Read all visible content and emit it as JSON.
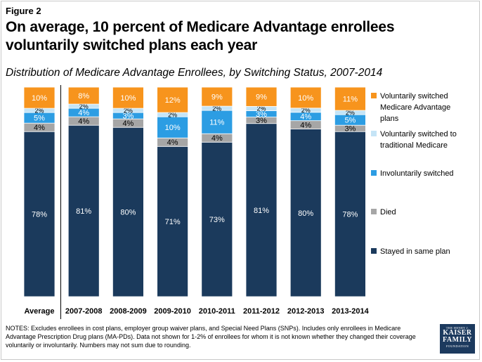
{
  "figure_label": "Figure 2",
  "title": "On average, 10 percent of Medicare Advantage enrollees voluntarily switched plans each year",
  "subtitle": "Distribution of Medicare Advantage Enrollees, by Switching Status, 2007-2014",
  "notes": "NOTES: Excludes enrollees in cost plans, employer group waiver plans, and Special Need Plans (SNPs).  Includes only enrollees in Medicare Advantage Prescription Drug plans (MA-PDs).  Data not shown for 1-2% of enrollees for whom it is not known whether they changed their coverage voluntarily or involuntarily.  Numbers may not sum due to rounding.",
  "logo": {
    "line1": "THE HENRY J.",
    "line2": "KAISER",
    "line3": "FAMILY",
    "line4": "FOUNDATION"
  },
  "chart_data": {
    "type": "bar",
    "stacked": true,
    "categories": [
      "Average",
      "2007-2008",
      "2008-2009",
      "2009-2010",
      "2010-2011",
      "2011-2012",
      "2012-2013",
      "2013-2014"
    ],
    "series": [
      {
        "name": "Stayed in same plan",
        "values": [
          78,
          81,
          80,
          71,
          73,
          81,
          80,
          78
        ],
        "labels": [
          "78%",
          "81%",
          "80%",
          "71%",
          "73%",
          "81%",
          "80%",
          "78%"
        ],
        "color": "#1b3a5c",
        "text_color": "#ffffff"
      },
      {
        "name": "Died",
        "values": [
          4,
          4,
          4,
          4,
          4,
          3,
          4,
          3
        ],
        "labels": [
          "4%",
          "4%",
          "4%",
          "4%",
          "4%",
          "3%",
          "4%",
          "3%"
        ],
        "color": "#a6a6a6",
        "text_color": "#000000"
      },
      {
        "name": "Involuntarily switched",
        "values": [
          5,
          4,
          3,
          10,
          11,
          3,
          4,
          5
        ],
        "labels": [
          "5%",
          "4%",
          "3%",
          "10%",
          "11%",
          "3%",
          "4%",
          "5%"
        ],
        "color": "#2c9de3",
        "text_color": "#ffffff"
      },
      {
        "name": "Voluntarily switched to traditional Medicare",
        "values": [
          2,
          2,
          2,
          2,
          2,
          2,
          2,
          2
        ],
        "labels": [
          "2%",
          "2%",
          "2%",
          "2%",
          "2%",
          "2%",
          "2%",
          "2%"
        ],
        "color": "#c5e4f6",
        "text_color": "#000000"
      },
      {
        "name": "Voluntarily switched Medicare Advantage plans",
        "values": [
          10,
          8,
          10,
          12,
          9,
          9,
          10,
          11
        ],
        "labels": [
          "10%",
          "8%",
          "10%",
          "12%",
          "9%",
          "9%",
          "10%",
          "11%"
        ],
        "color": "#f7941d",
        "text_color": "#ffffff"
      }
    ],
    "ylim": [
      0,
      100
    ],
    "legend": {
      "position": "right",
      "order": [
        {
          "series": 4,
          "lines": [
            "Voluntarily switched",
            "Medicare Advantage",
            "plans"
          ]
        },
        {
          "series": 3,
          "lines": [
            "Voluntarily switched to",
            "traditional Medicare"
          ]
        },
        {
          "series": 2,
          "lines": [
            "Involuntarily switched"
          ]
        },
        {
          "series": 1,
          "lines": [
            "Died"
          ]
        },
        {
          "series": 0,
          "lines": [
            "Stayed in same plan"
          ]
        }
      ]
    }
  }
}
